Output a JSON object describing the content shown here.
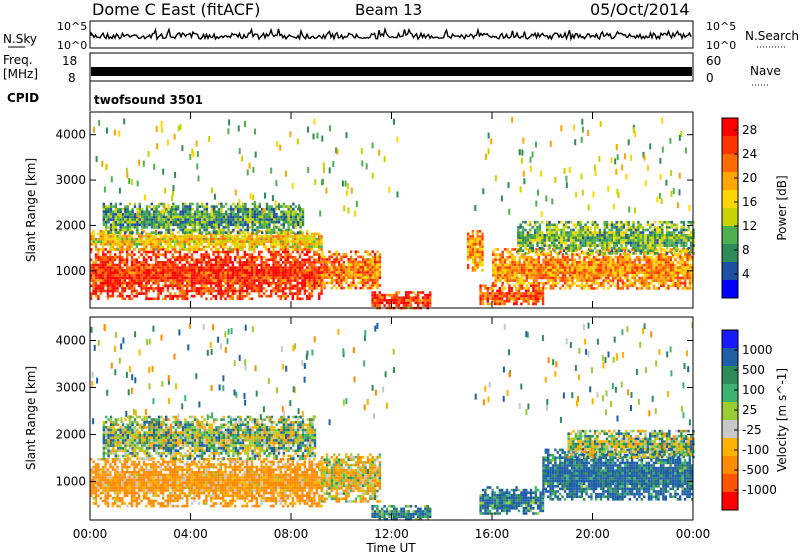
{
  "header": {
    "station": "Dome C East (fitACF)",
    "beam": "Beam 13",
    "date": "05/Oct/2014"
  },
  "noise_panel": {
    "left_label": "N.Sky",
    "right_label": "N.Search",
    "left_ticks": [
      "10^5",
      "10^0"
    ],
    "right_ticks": [
      "10^5",
      "10^0"
    ]
  },
  "freq_panel": {
    "left_label_line1": "Freq.",
    "left_label_line2": "[MHz]",
    "left_ticks": [
      "18",
      "8"
    ],
    "right_label": "Nave",
    "right_ticks": [
      "60",
      "0"
    ]
  },
  "cpid": {
    "label": "CPID",
    "value": "twofsound 3501"
  },
  "axes": {
    "ylabel": "Slant Range [km]",
    "xlabel": "Time UT",
    "yticks": [
      "1000",
      "2000",
      "3000",
      "4000"
    ],
    "xticks": [
      "00:00",
      "04:00",
      "08:00",
      "12:00",
      "16:00",
      "20:00",
      "00:00"
    ]
  },
  "colors": {
    "power": [
      "#0000ff",
      "#1d4fa3",
      "#2e8b57",
      "#4fb04f",
      "#c8d400",
      "#ffd700",
      "#ffa500",
      "#ff6a00",
      "#ff3300",
      "#ff0000"
    ],
    "velocity": [
      "#ff0000",
      "#ff5500",
      "#ff8c00",
      "#ffb300",
      "#c8c8c8",
      "#9acd32",
      "#3cb371",
      "#2e8b57",
      "#1f5fa6",
      "#1a1aff"
    ]
  },
  "chart_data": [
    {
      "type": "heatmap",
      "name": "power",
      "colorbar_label": "Power [dB]",
      "colorbar_ticks": [
        "4",
        "8",
        "12",
        "16",
        "20",
        "24",
        "28"
      ],
      "colorbar_range": [
        0,
        30
      ],
      "x_range_hours": [
        0,
        24
      ],
      "y_range_km": [
        180,
        4500
      ],
      "regions": [
        {
          "t0": 0.0,
          "t1": 9.2,
          "r0": 400,
          "r1": 1500,
          "v": 26
        },
        {
          "t0": 0.0,
          "t1": 9.2,
          "r0": 1450,
          "r1": 1900,
          "v": 17
        },
        {
          "t0": 0.5,
          "t1": 8.5,
          "r0": 1850,
          "r1": 2500,
          "v": 9
        },
        {
          "t0": 9.2,
          "t1": 11.5,
          "r0": 600,
          "r1": 1450,
          "v": 22
        },
        {
          "t0": 11.2,
          "t1": 13.5,
          "r0": 200,
          "r1": 550,
          "v": 26
        },
        {
          "t0": 15.0,
          "t1": 15.6,
          "r0": 1000,
          "r1": 1900,
          "v": 20
        },
        {
          "t0": 15.5,
          "t1": 18.0,
          "r0": 250,
          "r1": 700,
          "v": 24
        },
        {
          "t0": 16.0,
          "t1": 24.0,
          "r0": 600,
          "r1": 1500,
          "v": 21
        },
        {
          "t0": 17.0,
          "t1": 24.0,
          "r0": 1400,
          "r1": 2100,
          "v": 11
        }
      ]
    },
    {
      "type": "heatmap",
      "name": "velocity",
      "colorbar_label": "Velocity [m s^-1]",
      "colorbar_ticks": [
        "-1000",
        "-500",
        "-100",
        "-25",
        "25",
        "100",
        "500",
        "1000"
      ],
      "x_range_hours": [
        0,
        24
      ],
      "y_range_km": [
        180,
        4500
      ],
      "regions": [
        {
          "t0": 0.0,
          "t1": 9.2,
          "r0": 500,
          "r1": 1500,
          "v": -150
        },
        {
          "t0": 0.5,
          "t1": 9.0,
          "r0": 1500,
          "r1": 2400,
          "v": 10
        },
        {
          "t0": 9.2,
          "t1": 11.5,
          "r0": 600,
          "r1": 1600,
          "v": -60
        },
        {
          "t0": 11.2,
          "t1": 13.5,
          "r0": 200,
          "r1": 500,
          "v": 120
        },
        {
          "t0": 15.5,
          "t1": 18.0,
          "r0": 300,
          "r1": 900,
          "v": 130
        },
        {
          "t0": 18.0,
          "t1": 24.0,
          "r0": 600,
          "r1": 1700,
          "v": 150
        },
        {
          "t0": 19.0,
          "t1": 24.0,
          "r0": 1500,
          "r1": 2100,
          "v": 10
        }
      ]
    }
  ]
}
